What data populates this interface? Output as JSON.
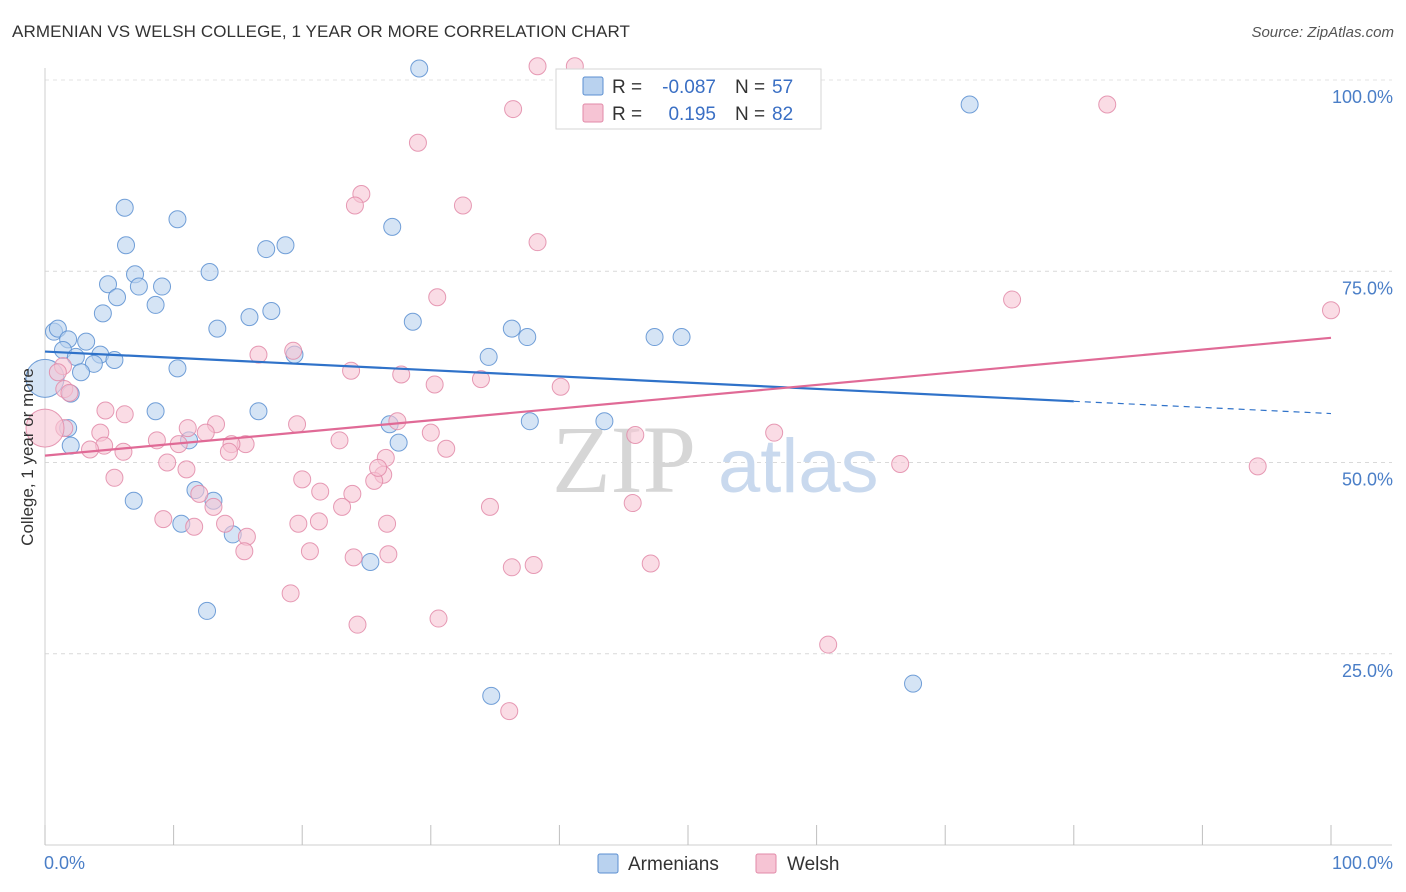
{
  "title": "ARMENIAN VS WELSH COLLEGE, 1 YEAR OR MORE CORRELATION CHART",
  "source": "Source: ZipAtlas.com",
  "watermark": {
    "zip": "ZIP",
    "atlas": "atlas"
  },
  "chart_data": {
    "type": "scatter",
    "title": "ARMENIAN VS WELSH COLLEGE, 1 YEAR OR MORE CORRELATION CHART",
    "xlabel": "",
    "ylabel": "College, 1 year or more",
    "xlim": [
      0,
      100
    ],
    "ylim": [
      0,
      105
    ],
    "x_tick_labels": {
      "left": "0.0%",
      "right": "100.0%"
    },
    "y_ticks": [
      {
        "value": 25,
        "label": "25.0%"
      },
      {
        "value": 50,
        "label": "50.0%"
      },
      {
        "value": 75,
        "label": "75.0%"
      },
      {
        "value": 100,
        "label": "100.0%"
      }
    ],
    "grid": true,
    "legend": [
      {
        "name": "Armenians",
        "r_label": "R =",
        "r_value": "-0.087",
        "n_label": "N =",
        "n_value": "57"
      },
      {
        "name": "Welsh",
        "r_label": "R =",
        "r_value": "0.195",
        "n_label": "N =",
        "n_value": "82"
      }
    ],
    "colors": {
      "armenians_fill": "#b9d2ef",
      "armenians_stroke": "#5b8fd1",
      "armenians_line": "#2f72c9",
      "welsh_fill": "#f6c4d4",
      "welsh_stroke": "#e28aa8",
      "welsh_line": "#e06a96",
      "value_text": "#3a6fc4",
      "label_text": "#333333",
      "tick_text": "#4a7ec7"
    },
    "series": [
      {
        "name": "Armenians",
        "trend": {
          "x0": 0,
          "y0": 64.5,
          "x1": 80,
          "y1": 58.0,
          "dash_to_x": 100,
          "dash_y": 56.4
        },
        "points": [
          [
            29.1,
            101.5
          ],
          [
            71.9,
            96.8
          ],
          [
            6.2,
            83.3
          ],
          [
            10.3,
            81.8
          ],
          [
            27.0,
            80.8
          ],
          [
            6.3,
            78.4
          ],
          [
            18.7,
            78.4
          ],
          [
            17.2,
            77.9
          ],
          [
            12.8,
            74.9
          ],
          [
            7.0,
            74.6
          ],
          [
            4.9,
            73.3
          ],
          [
            7.3,
            73.0
          ],
          [
            9.1,
            73.0
          ],
          [
            5.6,
            71.6
          ],
          [
            8.6,
            70.6
          ],
          [
            17.6,
            69.8
          ],
          [
            4.5,
            69.5
          ],
          [
            15.9,
            69.0
          ],
          [
            28.6,
            68.4
          ],
          [
            13.4,
            67.5
          ],
          [
            0.7,
            67.1
          ],
          [
            36.3,
            67.5
          ],
          [
            1.0,
            67.5
          ],
          [
            37.5,
            66.4
          ],
          [
            1.8,
            66.1
          ],
          [
            3.2,
            65.8
          ],
          [
            47.4,
            66.4
          ],
          [
            49.5,
            66.4
          ],
          [
            1.4,
            64.7
          ],
          [
            4.3,
            64.1
          ],
          [
            19.4,
            64.1
          ],
          [
            34.5,
            63.8
          ],
          [
            2.4,
            63.8
          ],
          [
            5.4,
            63.4
          ],
          [
            3.8,
            62.9
          ],
          [
            10.3,
            62.3
          ],
          [
            2.8,
            61.8
          ],
          [
            0.0,
            61.0
          ],
          [
            2.0,
            59.0
          ],
          [
            8.6,
            56.7
          ],
          [
            16.6,
            56.7
          ],
          [
            26.8,
            55.0
          ],
          [
            37.7,
            55.4
          ],
          [
            43.5,
            55.4
          ],
          [
            1.8,
            54.5
          ],
          [
            27.5,
            52.6
          ],
          [
            11.2,
            52.9
          ],
          [
            2.0,
            52.2
          ],
          [
            11.7,
            46.4
          ],
          [
            6.9,
            45.0
          ],
          [
            13.1,
            45.0
          ],
          [
            10.6,
            42.0
          ],
          [
            14.6,
            40.6
          ],
          [
            25.3,
            37.0
          ],
          [
            12.6,
            30.6
          ],
          [
            34.7,
            19.5
          ],
          [
            67.5,
            21.1
          ]
        ]
      },
      {
        "name": "Welsh",
        "trend": {
          "x0": 0,
          "y0": 50.9,
          "x1": 100,
          "y1": 66.3
        },
        "points": [
          [
            38.3,
            101.8
          ],
          [
            41.2,
            101.8
          ],
          [
            36.4,
            96.2
          ],
          [
            82.6,
            96.8
          ],
          [
            29.0,
            91.8
          ],
          [
            24.6,
            85.1
          ],
          [
            32.5,
            83.6
          ],
          [
            24.1,
            83.6
          ],
          [
            38.3,
            78.8
          ],
          [
            75.2,
            71.3
          ],
          [
            30.5,
            71.6
          ],
          [
            100.0,
            69.9
          ],
          [
            19.3,
            64.6
          ],
          [
            16.6,
            64.1
          ],
          [
            1.4,
            62.6
          ],
          [
            23.8,
            62.0
          ],
          [
            27.7,
            61.5
          ],
          [
            1.0,
            61.8
          ],
          [
            33.9,
            60.9
          ],
          [
            30.3,
            60.2
          ],
          [
            40.1,
            59.9
          ],
          [
            1.5,
            59.6
          ],
          [
            1.9,
            59.1
          ],
          [
            4.7,
            56.8
          ],
          [
            6.2,
            56.3
          ],
          [
            27.4,
            55.4
          ],
          [
            19.6,
            55.0
          ],
          [
            13.3,
            55.0
          ],
          [
            11.1,
            54.5
          ],
          [
            1.5,
            54.5
          ],
          [
            4.3,
            53.9
          ],
          [
            30.0,
            53.9
          ],
          [
            12.5,
            53.9
          ],
          [
            0.0,
            54.5
          ],
          [
            8.7,
            52.9
          ],
          [
            22.9,
            52.9
          ],
          [
            10.4,
            52.4
          ],
          [
            15.6,
            52.4
          ],
          [
            4.6,
            52.2
          ],
          [
            3.5,
            51.7
          ],
          [
            6.1,
            51.4
          ],
          [
            14.5,
            52.4
          ],
          [
            31.2,
            51.8
          ],
          [
            14.3,
            51.4
          ],
          [
            26.5,
            50.6
          ],
          [
            9.5,
            50.0
          ],
          [
            66.5,
            49.8
          ],
          [
            94.3,
            49.5
          ],
          [
            11.0,
            49.1
          ],
          [
            26.3,
            48.4
          ],
          [
            5.4,
            48.0
          ],
          [
            20.0,
            47.8
          ],
          [
            25.6,
            47.6
          ],
          [
            21.4,
            46.2
          ],
          [
            12.0,
            45.9
          ],
          [
            23.9,
            45.9
          ],
          [
            13.1,
            44.2
          ],
          [
            45.7,
            44.7
          ],
          [
            34.6,
            44.2
          ],
          [
            23.1,
            44.2
          ],
          [
            9.2,
            42.6
          ],
          [
            21.3,
            42.3
          ],
          [
            11.6,
            41.6
          ],
          [
            19.7,
            42.0
          ],
          [
            14.0,
            42.0
          ],
          [
            26.6,
            42.0
          ],
          [
            15.7,
            40.3
          ],
          [
            15.5,
            38.4
          ],
          [
            20.6,
            38.4
          ],
          [
            26.7,
            38.0
          ],
          [
            24.0,
            37.6
          ],
          [
            36.3,
            36.3
          ],
          [
            38.0,
            36.6
          ],
          [
            47.1,
            36.8
          ],
          [
            19.1,
            32.9
          ],
          [
            30.6,
            29.6
          ],
          [
            24.3,
            28.8
          ],
          [
            60.9,
            26.2
          ],
          [
            36.1,
            17.5
          ],
          [
            45.9,
            53.6
          ],
          [
            56.7,
            53.9
          ],
          [
            25.9,
            49.3
          ]
        ]
      }
    ]
  }
}
